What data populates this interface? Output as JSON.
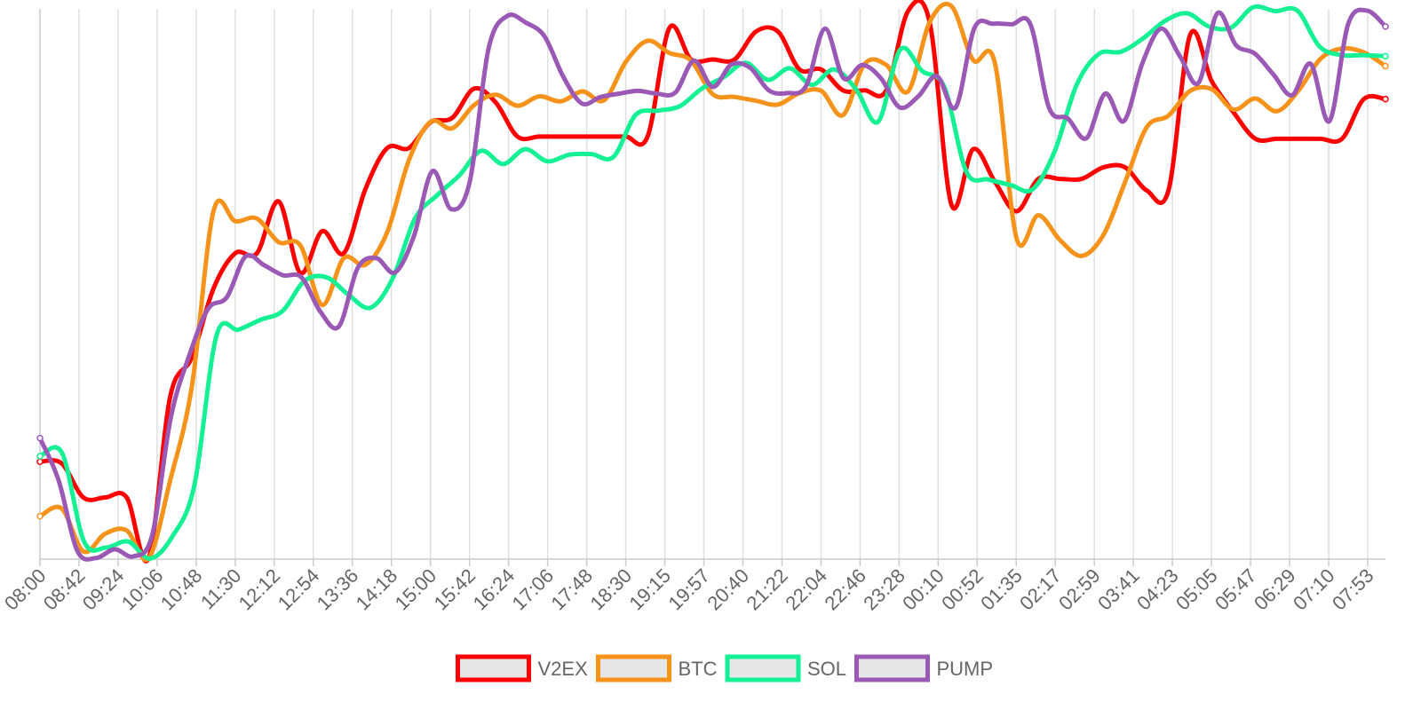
{
  "chart_data": {
    "type": "line",
    "title": "",
    "xlabel": "",
    "ylabel": "",
    "ylim": [
      0,
      100
    ],
    "grid": "vertical",
    "legend_position": "bottom-center",
    "x_tick_labels": [
      "08:00",
      "08:42",
      "09:24",
      "10:06",
      "10:48",
      "11:30",
      "12:12",
      "12:54",
      "13:36",
      "14:18",
      "15:00",
      "15:42",
      "16:24",
      "17:06",
      "17:48",
      "18:30",
      "19:15",
      "19:57",
      "20:40",
      "21:22",
      "22:04",
      "22:46",
      "23:28",
      "00:10",
      "00:52",
      "01:35",
      "02:17",
      "02:59",
      "03:41",
      "04:23",
      "05:05",
      "05:47",
      "06:29",
      "07:10",
      "07:53"
    ],
    "series": [
      {
        "name": "V2EX",
        "color": "#ff0000",
        "values": [
          17.7,
          17.4,
          11.2,
          11.2,
          11.2,
          0.1,
          29.5,
          36.7,
          49.2,
          55.6,
          55.6,
          65.0,
          52.0,
          59.6,
          55.6,
          67.3,
          74.7,
          74.7,
          79.4,
          80.2,
          85.5,
          83.0,
          76.8,
          76.8,
          76.8,
          76.8,
          76.8,
          76.8,
          76.8,
          96.5,
          90.8,
          90.8,
          90.8,
          95.9,
          95.9,
          89.0,
          89.0,
          85.2,
          85.2,
          85.2,
          99.6,
          97.5,
          64.4,
          74.5,
          68.6,
          63.2,
          69.1,
          69.1,
          69.1,
          71.2,
          71.2,
          67.0,
          67.0,
          95.3,
          86.8,
          81.2,
          76.4,
          76.4,
          76.4,
          76.4,
          76.4,
          83.6,
          83.6
        ]
      },
      {
        "name": "BTC",
        "color": "#f7931a",
        "values": [
          7.8,
          9.2,
          1.4,
          4.6,
          5.2,
          0.1,
          14.3,
          31.4,
          63.3,
          61.4,
          61.9,
          57.6,
          57.0,
          46.2,
          54.7,
          53.5,
          59.4,
          72.5,
          79.5,
          78.3,
          82.5,
          84.4,
          82.4,
          84.1,
          83.2,
          85.0,
          83.4,
          90.4,
          94.2,
          92.0,
          90.6,
          84.5,
          84.0,
          83.3,
          82.6,
          84.7,
          85.1,
          80.7,
          90.0,
          89.8,
          85.0,
          97.6,
          100.5,
          90.7,
          90.2,
          58.3,
          62.5,
          58.0,
          55.1,
          58.9,
          68.5,
          78.5,
          80.6,
          85.1,
          85.4,
          81.7,
          83.7,
          81.4,
          85.2,
          90.9,
          92.8,
          92.1,
          89.6
        ]
      },
      {
        "name": "SOL",
        "color": "#14f195",
        "values": [
          18.7,
          19.3,
          3.2,
          2.1,
          3.2,
          0.1,
          4.1,
          13.4,
          40.6,
          41.7,
          43.5,
          45.1,
          50.6,
          51.2,
          48.0,
          45.7,
          51.1,
          61.9,
          66.1,
          69.7,
          74.2,
          71.8,
          74.5,
          72.3,
          73.5,
          73.6,
          73.1,
          80.7,
          81.5,
          82.3,
          85.5,
          87.6,
          90.2,
          87.1,
          89.2,
          86.2,
          89.0,
          85.4,
          79.5,
          92.6,
          88.7,
          85.8,
          70.4,
          69.0,
          68.0,
          67.2,
          74.1,
          86.2,
          91.8,
          92.2,
          94.6,
          97.8,
          99.2,
          96.8,
          96.6,
          100.3,
          99.6,
          99.7,
          93.2,
          91.6,
          91.6,
          91.4
        ]
      },
      {
        "name": "PUMP",
        "color": "#9b59b6",
        "values": [
          22.0,
          14.3,
          1.5,
          0.2,
          1.8,
          0.5,
          4.3,
          25.7,
          37.1,
          45.5,
          47.6,
          55.0,
          53.4,
          51.6,
          51.2,
          45.0,
          42.3,
          52.9,
          54.7,
          52.1,
          58.6,
          70.5,
          63.6,
          68.6,
          92.7,
          98.7,
          97.5,
          95.0,
          87.7,
          82.8,
          84.0,
          84.6,
          85.1,
          84.6,
          84.8,
          90.6,
          85.8,
          89.9,
          89.3,
          85.2,
          84.7,
          86.0,
          96.4,
          87.4,
          89.8,
          87.4,
          82.1,
          84.1,
          87.8,
          82.1,
          96.5,
          97.3,
          97.2,
          97.2,
          82.0,
          80.1,
          76.5,
          84.6,
          79.6,
          90.2,
          96.4,
          91.4,
          86.6,
          99.2,
          93.4,
          91.9,
          88.1,
          84.3,
          90.0,
          79.6,
          97.2,
          99.7,
          96.8
        ]
      }
    ]
  }
}
